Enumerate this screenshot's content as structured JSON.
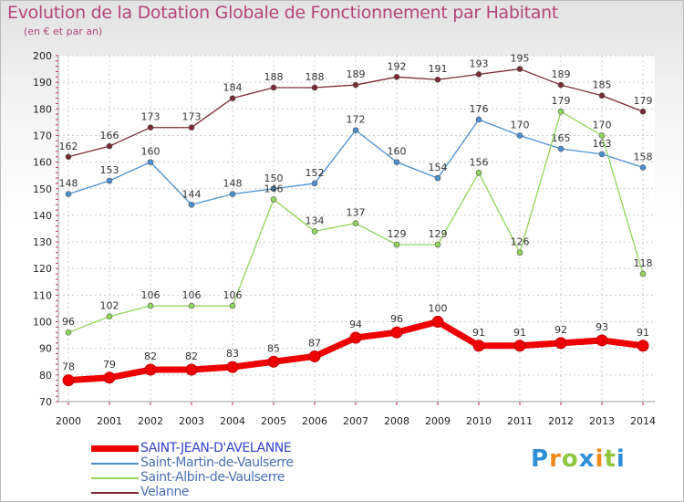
{
  "chart_data": {
    "type": "line",
    "title": "Evolution de la Dotation Globale de Fonctionnement par Habitant",
    "subtitle": "(en € et par an)",
    "xlabel": "",
    "ylabel": "",
    "ylim": [
      70,
      200
    ],
    "yticks": [
      70,
      80,
      90,
      100,
      110,
      120,
      130,
      140,
      150,
      160,
      170,
      180,
      190,
      200
    ],
    "grid": true,
    "legend_position": "bottom-left",
    "categories": [
      "2000",
      "2001",
      "2002",
      "2003",
      "2004",
      "2005",
      "2006",
      "2007",
      "2008",
      "2009",
      "2010",
      "2011",
      "2012",
      "2013",
      "2014"
    ],
    "series": [
      {
        "name": "Velanne",
        "color": "#7a2a34",
        "values": [
          162,
          166,
          173,
          173,
          184,
          188,
          188,
          189,
          192,
          191,
          193,
          195,
          189,
          185,
          179
        ]
      },
      {
        "name": "Saint-Martin-de-Vaulserre",
        "color": "#4a90d0",
        "values": [
          148,
          153,
          160,
          144,
          148,
          150,
          152,
          172,
          160,
          154,
          176,
          170,
          165,
          163,
          158
        ]
      },
      {
        "name": "Saint-Albin-de-Vaulserre",
        "color": "#8fd65a",
        "values": [
          96,
          102,
          106,
          106,
          106,
          146,
          134,
          137,
          129,
          129,
          156,
          126,
          179,
          170,
          118
        ]
      },
      {
        "name": "SAINT-JEAN-D'AVELANNE",
        "color": "#ee0000",
        "values": [
          78,
          79,
          82,
          82,
          83,
          85,
          87,
          94,
          96,
          100,
          91,
          91,
          92,
          93,
          91
        ]
      }
    ],
    "legend_order": [
      "SAINT-JEAN-D'AVELANNE",
      "Saint-Martin-de-Vaulserre",
      "Saint-Albin-de-Vaulserre",
      "Velanne"
    ],
    "legend_colors": [
      "#ee0000",
      "#4a90d0",
      "#8fd65a",
      "#7a2a34"
    ]
  },
  "brand": {
    "letters": [
      "P",
      "r",
      "o",
      "x",
      "i",
      "t",
      "i"
    ],
    "colors": [
      "#2f8fd6",
      "#f08a1c",
      "#8fc63f",
      "#2f8fd6",
      "#f08a1c",
      "#8fc63f",
      "#2f8fd6"
    ]
  },
  "colors": {
    "title": "#b4457a",
    "grid": "#cccccc",
    "axis_text": "#222222"
  }
}
